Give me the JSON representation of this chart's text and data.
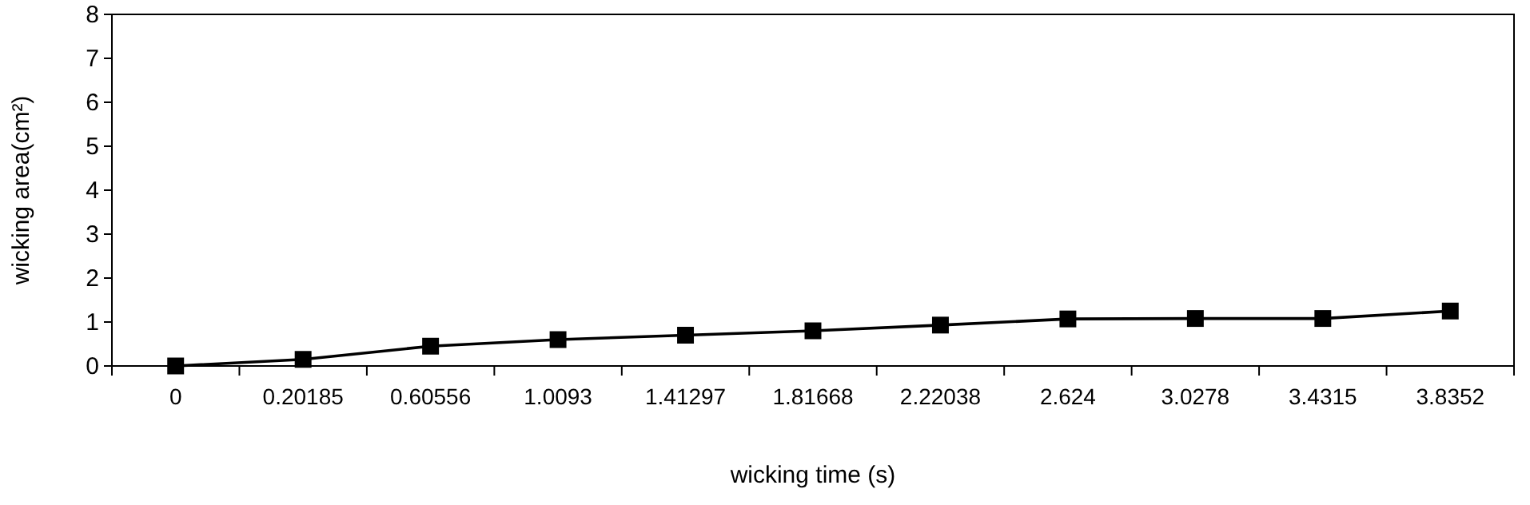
{
  "chart_data": {
    "type": "line",
    "xlabel": "wicking time (s)",
    "ylabel": "wicking area(cm²)",
    "categories": [
      "0",
      "0.20185",
      "0.60556",
      "1.0093",
      "1.41297",
      "1.81668",
      "2.22038",
      "2.624",
      "3.0278",
      "3.4315",
      "3.8352"
    ],
    "series": [
      {
        "color": "#000000",
        "values": [
          0,
          0.15,
          0.45,
          0.6,
          0.7,
          0.8,
          0.93,
          1.07,
          1.08,
          1.08,
          1.25
        ]
      }
    ],
    "ylim": [
      0,
      8
    ],
    "yticks": [
      0,
      1,
      2,
      3,
      4,
      5,
      6,
      7,
      8
    ],
    "grid": false,
    "marker": "square",
    "line_style": "solid"
  }
}
